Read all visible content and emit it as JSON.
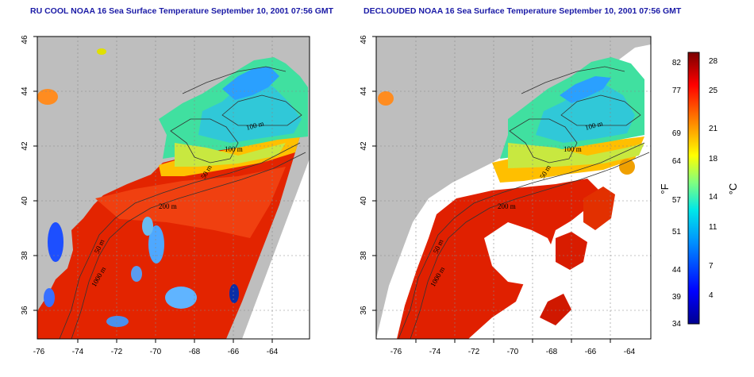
{
  "panels": [
    {
      "title": "RU COOL NOAA 16 Sea Surface Temperature September 10, 2001 07:56 GMT"
    },
    {
      "title": "DECLOUDED NOAA 16 Sea Surface Temperature September 10, 2001 07:56 GMT"
    }
  ],
  "axes": {
    "lon_ticks": [
      "-76",
      "-74",
      "-72",
      "-70",
      "-68",
      "-66",
      "-64"
    ],
    "lat_ticks": [
      "36",
      "38",
      "40",
      "42",
      "44",
      "46"
    ],
    "lon_range": [
      -77,
      -63
    ],
    "lat_range": [
      35,
      46
    ]
  },
  "contour_labels": [
    "100 m",
    "100 m",
    "50 m",
    "50 m",
    "200 m",
    "50 m",
    "1000 m"
  ],
  "colorbar": {
    "fahrenheit_ticks": [
      "82",
      "77",
      "69",
      "64",
      "57",
      "51",
      "44",
      "39",
      "34"
    ],
    "celsius_ticks": [
      "28",
      "25",
      "21",
      "18",
      "14",
      "11",
      "7",
      "4"
    ],
    "f_unit": "°F",
    "c_unit": "°C",
    "colors": [
      "#00008f",
      "#0000ff",
      "#0080ff",
      "#00ffff",
      "#80ff80",
      "#ffff00",
      "#ff8000",
      "#ff0000",
      "#800000"
    ]
  },
  "colors": {
    "land": "#bebebe",
    "water_no_data": "#ffffff",
    "title": "#1a1aa6"
  }
}
